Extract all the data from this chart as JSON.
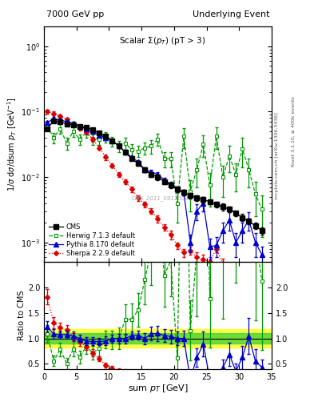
{
  "title_left": "7000 GeV pp",
  "title_right": "Underlying Event",
  "plot_title": "Scalar $\\Sigma(p_T)$ (pT > 3)",
  "xlabel": "sum $p_T$ [GeV]",
  "ylabel_main": "1/$\\sigma$ d$\\sigma$/dsum $p_T$ [GeV$^{-1}$]",
  "ylabel_ratio": "Ratio to CMS",
  "watermark": "CMS_2011_S9120041",
  "side_label1": "mcplots.cern.ch [arXiv:1306.3436]",
  "side_label2": "Rivet 3.1.10, ≥ 400k events",
  "cms_x": [
    0.5,
    1.5,
    2.5,
    3.5,
    4.5,
    5.5,
    6.5,
    7.5,
    8.5,
    9.5,
    10.5,
    11.5,
    12.5,
    13.5,
    14.5,
    15.5,
    16.5,
    17.5,
    18.5,
    19.5,
    20.5,
    21.5,
    22.5,
    23.5,
    24.5,
    25.5,
    26.5,
    27.5,
    28.5,
    29.5,
    30.5,
    31.5,
    32.5,
    33.5
  ],
  "cms_y": [
    0.055,
    0.072,
    0.07,
    0.065,
    0.063,
    0.06,
    0.057,
    0.053,
    0.047,
    0.042,
    0.036,
    0.03,
    0.024,
    0.019,
    0.016,
    0.013,
    0.011,
    0.01,
    0.0085,
    0.0075,
    0.0065,
    0.0058,
    0.0052,
    0.0048,
    0.0045,
    0.0042,
    0.0038,
    0.0035,
    0.0032,
    0.0028,
    0.0024,
    0.0021,
    0.0018,
    0.0015
  ],
  "cms_yerr": [
    0.003,
    0.004,
    0.003,
    0.003,
    0.003,
    0.003,
    0.003,
    0.003,
    0.002,
    0.002,
    0.002,
    0.002,
    0.001,
    0.001,
    0.001,
    0.001,
    0.001,
    0.001,
    0.0007,
    0.0007,
    0.0006,
    0.0006,
    0.0005,
    0.0005,
    0.0005,
    0.0004,
    0.0004,
    0.0004,
    0.0003,
    0.0003,
    0.0003,
    0.0002,
    0.0002,
    0.0002
  ],
  "herwig_x": [
    0.5,
    1.5,
    2.5,
    3.5,
    4.5,
    5.5,
    6.5,
    7.5,
    8.5,
    9.5,
    10.5,
    11.5,
    12.5,
    13.5,
    14.5,
    15.5,
    16.5,
    17.5,
    18.5,
    19.5,
    20.5,
    21.5,
    22.5,
    23.5,
    24.5,
    25.5,
    26.5,
    27.5,
    28.5,
    29.5,
    30.5,
    31.5,
    32.5,
    33.5
  ],
  "herwig_y": [
    0.06,
    0.04,
    0.055,
    0.033,
    0.05,
    0.038,
    0.048,
    0.038,
    0.038,
    0.041,
    0.035,
    0.03,
    0.033,
    0.026,
    0.025,
    0.028,
    0.03,
    0.038,
    0.019,
    0.019,
    0.004,
    0.042,
    0.006,
    0.013,
    0.032,
    0.0075,
    0.042,
    0.01,
    0.021,
    0.011,
    0.027,
    0.013,
    0.0055,
    0.0032
  ],
  "herwig_yerr": [
    0.009,
    0.007,
    0.009,
    0.007,
    0.009,
    0.007,
    0.008,
    0.007,
    0.007,
    0.007,
    0.006,
    0.006,
    0.007,
    0.006,
    0.005,
    0.006,
    0.007,
    0.008,
    0.005,
    0.005,
    0.002,
    0.014,
    0.003,
    0.006,
    0.012,
    0.004,
    0.015,
    0.005,
    0.009,
    0.005,
    0.013,
    0.006,
    0.003,
    0.002
  ],
  "pythia_x": [
    0.5,
    1.5,
    2.5,
    3.5,
    4.5,
    5.5,
    6.5,
    7.5,
    8.5,
    9.5,
    10.5,
    11.5,
    12.5,
    13.5,
    14.5,
    15.5,
    16.5,
    17.5,
    18.5,
    19.5,
    20.5,
    21.5,
    22.5,
    23.5,
    24.5,
    25.5,
    26.5,
    27.5,
    28.5,
    29.5,
    30.5,
    31.5,
    32.5,
    33.5
  ],
  "pythia_y": [
    0.068,
    0.078,
    0.075,
    0.07,
    0.066,
    0.06,
    0.054,
    0.05,
    0.044,
    0.04,
    0.036,
    0.03,
    0.024,
    0.02,
    0.017,
    0.013,
    0.012,
    0.011,
    0.009,
    0.0078,
    0.0065,
    0.0058,
    0.001,
    0.003,
    0.004,
    0.00085,
    0.0009,
    0.0015,
    0.0022,
    0.001,
    0.0015,
    0.0022,
    0.001,
    0.00065
  ],
  "pythia_yerr": [
    0.004,
    0.005,
    0.004,
    0.004,
    0.004,
    0.003,
    0.003,
    0.003,
    0.003,
    0.003,
    0.002,
    0.002,
    0.002,
    0.001,
    0.001,
    0.001,
    0.001,
    0.001,
    0.0008,
    0.0007,
    0.0006,
    0.0006,
    0.0003,
    0.0008,
    0.001,
    0.0003,
    0.0003,
    0.0005,
    0.0007,
    0.0004,
    0.0005,
    0.0007,
    0.0004,
    0.0002
  ],
  "sherpa_x": [
    0.5,
    1.5,
    2.5,
    3.5,
    4.5,
    5.5,
    6.5,
    7.5,
    8.5,
    9.5,
    10.5,
    11.5,
    12.5,
    13.5,
    14.5,
    15.5,
    16.5,
    17.5,
    18.5,
    19.5,
    20.5,
    21.5,
    22.5,
    23.5,
    24.5,
    25.5,
    26.5,
    27.5,
    28.5,
    29.5,
    30.5,
    31.5
  ],
  "sherpa_y": [
    0.1,
    0.094,
    0.085,
    0.076,
    0.065,
    0.056,
    0.048,
    0.038,
    0.028,
    0.02,
    0.015,
    0.011,
    0.0085,
    0.0065,
    0.0048,
    0.0038,
    0.003,
    0.0023,
    0.0017,
    0.0013,
    0.0009,
    0.0007,
    0.00075,
    0.0006,
    0.00055,
    0.0005,
    0.0008,
    0.00048,
    0.00042,
    0.00035,
    0.0003,
    0.00025
  ],
  "sherpa_yerr": [
    0.006,
    0.006,
    0.005,
    0.005,
    0.004,
    0.004,
    0.003,
    0.003,
    0.002,
    0.002,
    0.001,
    0.001,
    0.0008,
    0.0006,
    0.0005,
    0.0004,
    0.0003,
    0.0003,
    0.0002,
    0.0002,
    0.0001,
    0.0001,
    0.0001,
    0.0001,
    0.0001,
    0.0001,
    0.0001,
    8e-05,
    7e-05,
    6e-05,
    5e-05,
    5e-05
  ],
  "cms_color": "#000000",
  "herwig_color": "#009900",
  "pythia_color": "#0000cc",
  "sherpa_color": "#dd0000",
  "xlim": [
    0,
    35
  ],
  "ylim_main": [
    0.0005,
    2.0
  ],
  "ylim_ratio": [
    0.4,
    2.5
  ],
  "band_yellow_lo": 0.82,
  "band_yellow_hi": 1.18,
  "band_green_lo": 0.9,
  "band_green_hi": 1.1,
  "band_xgrow": [
    0,
    35
  ]
}
